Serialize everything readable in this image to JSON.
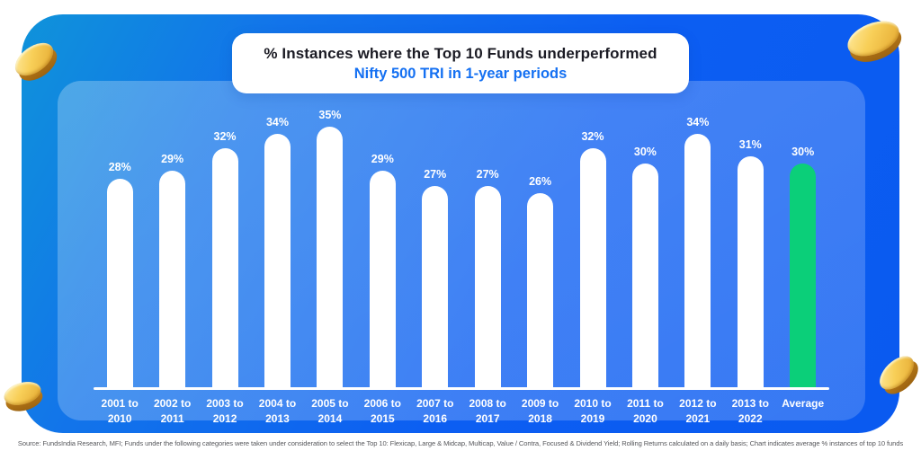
{
  "title": {
    "line1": "% Instances where the Top 10 Funds underperformed",
    "line2": "Nifty 500 TRI in 1-year periods"
  },
  "chart_data": {
    "type": "bar",
    "categories": [
      "2001 to 2010",
      "2002 to 2011",
      "2003 to 2012",
      "2004 to 2013",
      "2005 to 2014",
      "2006 to 2015",
      "2007 to 2016",
      "2008 to 2017",
      "2009 to 2018",
      "2010 to 2019",
      "2011 to 2020",
      "2012 to 2021",
      "2013 to 2022",
      "Average"
    ],
    "values": [
      28,
      29,
      32,
      34,
      35,
      29,
      27,
      27,
      26,
      32,
      30,
      34,
      31,
      30
    ],
    "value_suffix": "%",
    "highlight_index": 13,
    "title": "% Instances where the Top 10 Funds underperformed Nifty 500 TRI in 1-year periods",
    "xlabel": "",
    "ylabel": "",
    "ylim": [
      0,
      38
    ],
    "grid": false,
    "legend": "none",
    "bar_color": "#ffffff",
    "highlight_color": "#0bcf79",
    "label_color": "#ffffff"
  },
  "footer": {
    "source": "Source: FundsIndia Research, MFI; Funds under the following categories were taken under consideration to select the Top 10: Flexicap, Large & Midcap, Multicap, Value / Contra, Focused & Dividend Yield; Rolling Returns calculated on a daily basis; Chart indicates average % instances of top 10 funds"
  },
  "colors": {
    "card_gradient_start": "#0f93da",
    "card_gradient_end": "#0a5af0",
    "inner_panel": "#4280f8",
    "title_dark": "#1b1b24",
    "title_blue": "#1470f2",
    "coin_gold": "#f8cf58"
  },
  "decorations": {
    "coin_icon": "gold-coin",
    "positions": [
      "top-left",
      "top-right",
      "bottom-left",
      "bottom-right"
    ]
  }
}
